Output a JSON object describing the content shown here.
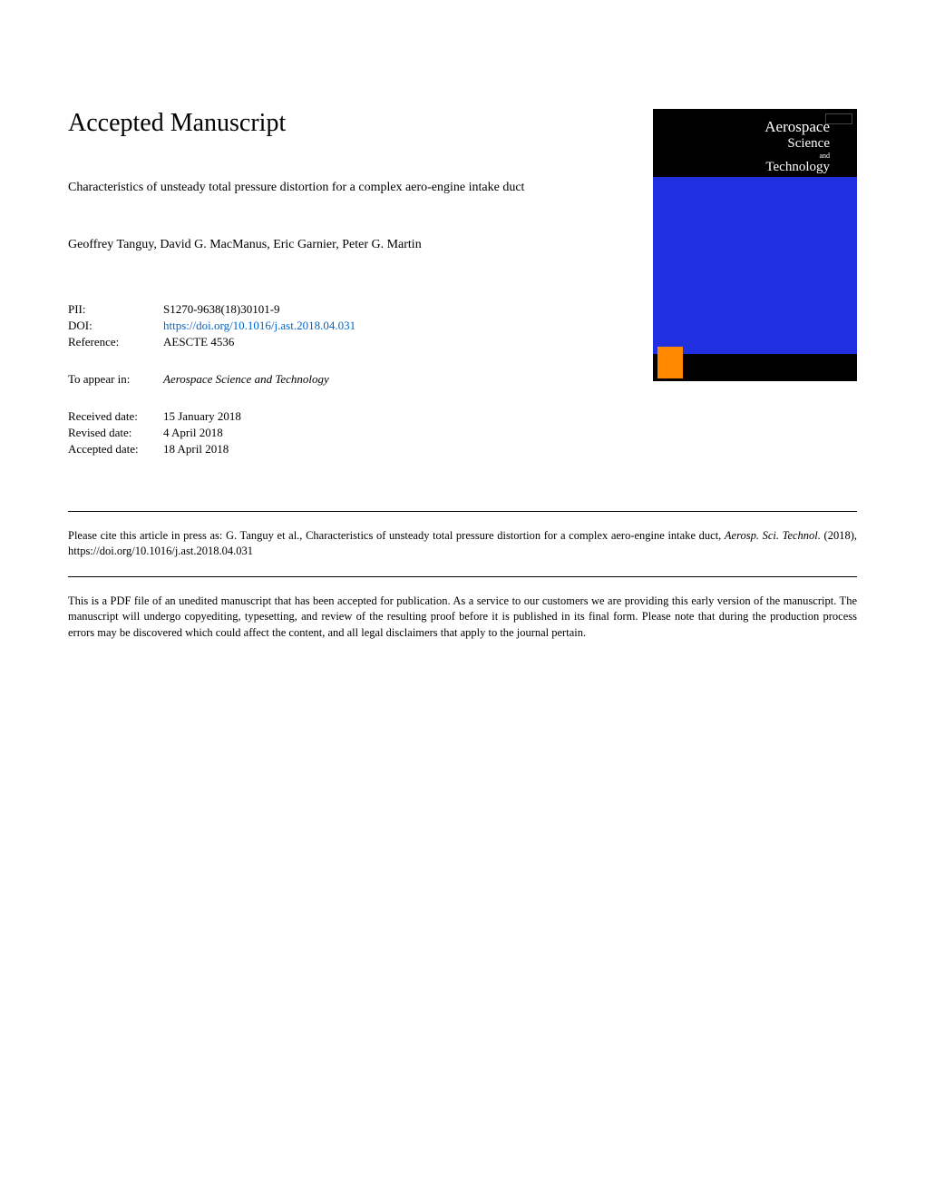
{
  "heading": "Accepted Manuscript",
  "article_title": "Characteristics of unsteady total pressure distortion for a complex aero-engine intake duct",
  "authors": "Geoffrey Tanguy, David G. MacManus, Eric Garnier, Peter G. Martin",
  "meta": {
    "pii_label": "PII:",
    "pii_value": "S1270-9638(18)30101-9",
    "doi_label": "DOI:",
    "doi_value": "https://doi.org/10.1016/j.ast.2018.04.031",
    "ref_label": "Reference:",
    "ref_value": "AESCTE 4536"
  },
  "appear_in": {
    "label": "To appear in:",
    "journal": "Aerospace Science and Technology"
  },
  "dates": {
    "received_label": "Received date:",
    "received_value": "15 January 2018",
    "revised_label": "Revised date:",
    "revised_value": "4 April 2018",
    "accepted_label": "Accepted date:",
    "accepted_value": "18 April 2018"
  },
  "citation": {
    "prefix": "Please cite this article in press as: G. Tanguy et al., Characteristics of unsteady total pressure distortion for a complex aero-engine intake duct, ",
    "journal": "Aerosp. Sci. Technol.",
    "suffix": " (2018), https://doi.org/10.1016/j.ast.2018.04.031"
  },
  "disclaimer": "This is a PDF file of an unedited manuscript that has been accepted for publication. As a service to our customers we are providing this early version of the manuscript. The manuscript will undergo copyediting, typesetting, and review of the resulting proof before it is published in its final form. Please note that during the production process errors may be discovered which could affect the content, and all legal disclaimers that apply to the journal pertain.",
  "cover": {
    "line1": "Aerospace",
    "line2": "Science",
    "and": "and",
    "line3": "Technology",
    "colors": {
      "top_bg": "#000000",
      "middle_bg": "#2030e0",
      "bottom_bg": "#000000",
      "logo_bg": "#ff8800",
      "text": "#ffffff"
    }
  },
  "styling": {
    "page_bg": "#ffffff",
    "text_color": "#000000",
    "link_color": "#0066cc",
    "heading_fontsize": 28,
    "body_fontsize": 14,
    "meta_fontsize": 13,
    "footer_fontsize": 12.5
  }
}
